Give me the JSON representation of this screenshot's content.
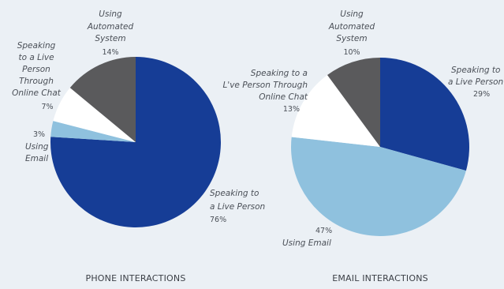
{
  "chart_data": [
    {
      "type": "pie",
      "title": "PHONE INTERACTIONS",
      "slices": [
        {
          "label_lines": [
            "Speaking to",
            "a Live Person"
          ],
          "value": 76,
          "value_text": "76%",
          "color": "#163d96"
        },
        {
          "label_lines": [
            "Using",
            "Email"
          ],
          "value": 3,
          "value_text": "3%",
          "color": "#8fc1de"
        },
        {
          "label_lines": [
            "Speaking",
            "to a Live",
            "Person",
            "Through",
            "Online Chat"
          ],
          "value": 7,
          "value_text": "7%",
          "color": "#ffffff"
        },
        {
          "label_lines": [
            "Using",
            "Automated",
            "System"
          ],
          "value": 14,
          "value_text": "14%",
          "color": "#5a5a5c"
        }
      ]
    },
    {
      "type": "pie",
      "title": "EMAIL INTERACTIONS",
      "slices": [
        {
          "label_lines": [
            "Speaking to",
            "a Live Person"
          ],
          "value": 29,
          "value_text": "29%",
          "color": "#163d96"
        },
        {
          "label_lines": [
            "Using Email"
          ],
          "value": 47,
          "value_text": "47%",
          "color": "#8fc1de"
        },
        {
          "label_lines": [
            "Speaking to a",
            "L've Person Through",
            "Online Chat"
          ],
          "value": 13,
          "value_text": "13%",
          "color": "#ffffff"
        },
        {
          "label_lines": [
            "Using",
            "Automated",
            "System"
          ],
          "value": 10,
          "value_text": "10%",
          "color": "#5a5a5c"
        }
      ]
    }
  ]
}
